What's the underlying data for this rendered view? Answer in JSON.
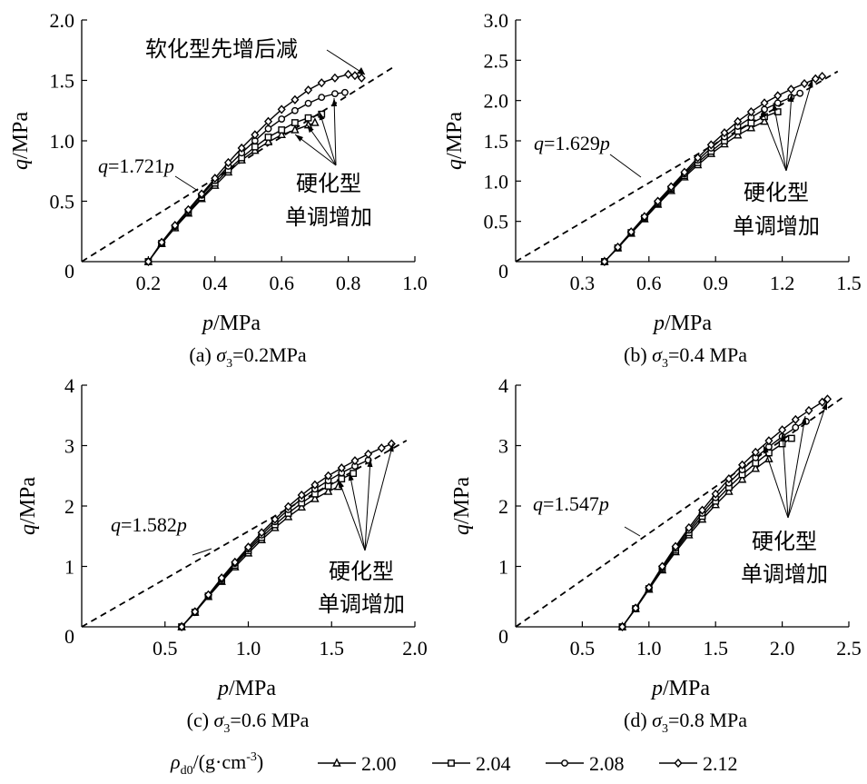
{
  "figure": {
    "legend": {
      "title_symbol": "ρ",
      "title_sub": "d0",
      "title_unit": "/(g·cm",
      "title_exp": "-3",
      "title_close": ")",
      "entries": [
        {
          "label": "2.00",
          "marker": "triangle"
        },
        {
          "label": "2.04",
          "marker": "square"
        },
        {
          "label": "2.08",
          "marker": "circle"
        },
        {
          "label": "2.12",
          "marker": "diamond"
        }
      ]
    }
  },
  "chart_data": [
    {
      "type": "line",
      "caption_prefix": "(a) ",
      "caption_sigma": "σ",
      "caption_sub": "3",
      "caption_value": "=0.2MPa",
      "xlabel_var": "p",
      "xlabel_unit": "/MPa",
      "ylabel_var": "q",
      "ylabel_unit": "/MPa",
      "xlim": [
        0,
        1.0
      ],
      "ylim": [
        0,
        2.0
      ],
      "xticks": [
        0.2,
        0.4,
        0.6,
        0.8,
        1.0
      ],
      "xtick_labels": [
        "0.2",
        "0.4",
        "0.6",
        "0.8",
        "1.0"
      ],
      "yticks": [
        0.5,
        1.0,
        1.5,
        2.0
      ],
      "ytick_labels": [
        "0.5",
        "1.0",
        "1.5",
        "2.0"
      ],
      "origin_label": "0",
      "critical_line": {
        "slope": 1.721,
        "x_end": 0.94,
        "label_var": "q",
        "label_mid": "=1.721",
        "label_var2": "p"
      },
      "annotations": [
        {
          "text": "软化型先增后减",
          "position": "top"
        },
        {
          "line1": "硬化型",
          "line2": "单调增加",
          "position": "right"
        }
      ],
      "series": [
        {
          "name": "2.00",
          "marker": "triangle",
          "x": [
            0.2,
            0.24,
            0.28,
            0.32,
            0.36,
            0.4,
            0.44,
            0.48,
            0.52,
            0.56,
            0.6,
            0.64,
            0.68,
            0.7
          ],
          "y": [
            0,
            0.15,
            0.28,
            0.4,
            0.52,
            0.63,
            0.74,
            0.84,
            0.92,
            0.99,
            1.05,
            1.09,
            1.13,
            1.15
          ]
        },
        {
          "name": "2.04",
          "marker": "square",
          "x": [
            0.2,
            0.24,
            0.28,
            0.32,
            0.36,
            0.4,
            0.44,
            0.48,
            0.52,
            0.56,
            0.6,
            0.64,
            0.68,
            0.72
          ],
          "y": [
            0,
            0.15,
            0.28,
            0.41,
            0.53,
            0.65,
            0.76,
            0.86,
            0.95,
            1.03,
            1.09,
            1.15,
            1.19,
            1.22
          ]
        },
        {
          "name": "2.08",
          "marker": "circle",
          "x": [
            0.2,
            0.24,
            0.28,
            0.32,
            0.36,
            0.4,
            0.44,
            0.48,
            0.52,
            0.56,
            0.6,
            0.64,
            0.68,
            0.72,
            0.76,
            0.79
          ],
          "y": [
            0,
            0.15,
            0.29,
            0.42,
            0.55,
            0.67,
            0.79,
            0.9,
            1.0,
            1.1,
            1.18,
            1.25,
            1.31,
            1.36,
            1.39,
            1.4
          ]
        },
        {
          "name": "2.12",
          "marker": "diamond",
          "x": [
            0.2,
            0.24,
            0.28,
            0.32,
            0.36,
            0.4,
            0.44,
            0.48,
            0.52,
            0.56,
            0.6,
            0.64,
            0.68,
            0.72,
            0.76,
            0.8,
            0.82,
            0.84
          ],
          "y": [
            0,
            0.16,
            0.3,
            0.43,
            0.56,
            0.69,
            0.82,
            0.94,
            1.05,
            1.16,
            1.26,
            1.34,
            1.42,
            1.48,
            1.52,
            1.55,
            1.54,
            1.52
          ]
        }
      ]
    },
    {
      "type": "line",
      "caption_prefix": "(b) ",
      "caption_sigma": "σ",
      "caption_sub": "3",
      "caption_value": "=0.4 MPa",
      "xlabel_var": "p",
      "xlabel_unit": "/MPa",
      "ylabel_var": "q",
      "ylabel_unit": "/MPa",
      "xlim": [
        0,
        1.5
      ],
      "ylim": [
        0,
        3.0
      ],
      "xticks": [
        0.3,
        0.6,
        0.9,
        1.2,
        1.5
      ],
      "xtick_labels": [
        "0.3",
        "0.6",
        "0.9",
        "1.2",
        "1.5"
      ],
      "yticks": [
        0.5,
        1.0,
        1.5,
        2.0,
        2.5,
        3.0
      ],
      "ytick_labels": [
        "0.5",
        "1.0",
        "1.5",
        "2.0",
        "2.5",
        "3.0"
      ],
      "origin_label": "0",
      "critical_line": {
        "slope": 1.629,
        "x_end": 1.45,
        "label_var": "q",
        "label_mid": "=1.629",
        "label_var2": "p"
      },
      "annotations": [
        {
          "line1": "硬化型",
          "line2": "单调增加",
          "position": "right"
        }
      ],
      "series": [
        {
          "name": "2.00",
          "marker": "triangle",
          "x": [
            0.4,
            0.46,
            0.52,
            0.58,
            0.64,
            0.7,
            0.76,
            0.82,
            0.88,
            0.94,
            1.0,
            1.06,
            1.12
          ],
          "y": [
            0,
            0.17,
            0.35,
            0.53,
            0.71,
            0.88,
            1.05,
            1.2,
            1.34,
            1.46,
            1.57,
            1.66,
            1.74
          ]
        },
        {
          "name": "2.04",
          "marker": "square",
          "x": [
            0.4,
            0.46,
            0.52,
            0.58,
            0.64,
            0.7,
            0.76,
            0.82,
            0.88,
            0.94,
            1.0,
            1.06,
            1.12,
            1.18
          ],
          "y": [
            0,
            0.17,
            0.36,
            0.54,
            0.72,
            0.9,
            1.07,
            1.23,
            1.37,
            1.5,
            1.62,
            1.72,
            1.8,
            1.86
          ]
        },
        {
          "name": "2.08",
          "marker": "circle",
          "x": [
            0.4,
            0.46,
            0.52,
            0.58,
            0.64,
            0.7,
            0.76,
            0.82,
            0.88,
            0.94,
            1.0,
            1.06,
            1.12,
            1.18,
            1.24,
            1.28
          ],
          "y": [
            0,
            0.17,
            0.36,
            0.55,
            0.73,
            0.91,
            1.09,
            1.26,
            1.41,
            1.55,
            1.68,
            1.79,
            1.89,
            1.97,
            2.04,
            2.09
          ]
        },
        {
          "name": "2.12",
          "marker": "diamond",
          "x": [
            0.4,
            0.46,
            0.52,
            0.58,
            0.64,
            0.7,
            0.76,
            0.82,
            0.88,
            0.94,
            1.0,
            1.06,
            1.12,
            1.18,
            1.24,
            1.3,
            1.35,
            1.38
          ],
          "y": [
            0,
            0.18,
            0.37,
            0.56,
            0.75,
            0.93,
            1.11,
            1.29,
            1.45,
            1.6,
            1.74,
            1.86,
            1.97,
            2.06,
            2.14,
            2.21,
            2.27,
            2.3
          ]
        }
      ]
    },
    {
      "type": "line",
      "caption_prefix": "(c) ",
      "caption_sigma": "σ",
      "caption_sub": "3",
      "caption_value": "=0.6 MPa",
      "xlabel_var": "p",
      "xlabel_unit": "/MPa",
      "ylabel_var": "q",
      "ylabel_unit": "/MPa",
      "xlim": [
        0,
        2.0
      ],
      "ylim": [
        0,
        4.0
      ],
      "xticks": [
        0.5,
        1.0,
        1.5,
        2.0
      ],
      "xtick_labels": [
        "0.5",
        "1.0",
        "1.5",
        "2.0"
      ],
      "yticks": [
        1,
        2,
        3,
        4
      ],
      "ytick_labels": [
        "1",
        "2",
        "3",
        "4"
      ],
      "origin_label": "0",
      "critical_line": {
        "slope": 1.582,
        "x_end": 1.95,
        "label_var": "q",
        "label_mid": "=1.582",
        "label_var2": "p"
      },
      "annotations": [
        {
          "line1": "硬化型",
          "line2": "单调增加",
          "position": "right"
        }
      ],
      "series": [
        {
          "name": "2.00",
          "marker": "triangle",
          "x": [
            0.6,
            0.68,
            0.76,
            0.84,
            0.92,
            1.0,
            1.08,
            1.16,
            1.24,
            1.32,
            1.4,
            1.48,
            1.54
          ],
          "y": [
            0,
            0.24,
            0.5,
            0.75,
            0.99,
            1.22,
            1.44,
            1.64,
            1.82,
            1.98,
            2.12,
            2.24,
            2.32
          ]
        },
        {
          "name": "2.04",
          "marker": "square",
          "x": [
            0.6,
            0.68,
            0.76,
            0.84,
            0.92,
            1.0,
            1.08,
            1.16,
            1.24,
            1.32,
            1.4,
            1.48,
            1.56,
            1.63
          ],
          "y": [
            0,
            0.24,
            0.51,
            0.77,
            1.02,
            1.26,
            1.48,
            1.69,
            1.88,
            2.05,
            2.2,
            2.33,
            2.45,
            2.54
          ]
        },
        {
          "name": "2.08",
          "marker": "circle",
          "x": [
            0.6,
            0.68,
            0.76,
            0.84,
            0.92,
            1.0,
            1.08,
            1.16,
            1.24,
            1.32,
            1.4,
            1.48,
            1.56,
            1.64,
            1.72
          ],
          "y": [
            0,
            0.25,
            0.52,
            0.79,
            1.05,
            1.29,
            1.52,
            1.74,
            1.94,
            2.12,
            2.28,
            2.42,
            2.55,
            2.66,
            2.76
          ]
        },
        {
          "name": "2.12",
          "marker": "diamond",
          "x": [
            0.6,
            0.68,
            0.76,
            0.84,
            0.92,
            1.0,
            1.08,
            1.16,
            1.24,
            1.32,
            1.4,
            1.48,
            1.56,
            1.64,
            1.72,
            1.8,
            1.86
          ],
          "y": [
            0,
            0.25,
            0.53,
            0.81,
            1.07,
            1.32,
            1.56,
            1.78,
            1.99,
            2.18,
            2.35,
            2.5,
            2.63,
            2.75,
            2.86,
            2.96,
            3.03
          ]
        }
      ]
    },
    {
      "type": "line",
      "caption_prefix": "(d) ",
      "caption_sigma": "σ",
      "caption_sub": "3",
      "caption_value": "=0.8 MPa",
      "xlabel_var": "p",
      "xlabel_unit": "/MPa",
      "ylabel_var": "q",
      "ylabel_unit": "/MPa",
      "xlim": [
        0,
        2.5
      ],
      "ylim": [
        0,
        4.0
      ],
      "xticks": [
        0.5,
        1.0,
        1.5,
        2.0,
        2.5
      ],
      "xtick_labels": [
        "0.5",
        "1.0",
        "1.5",
        "2.0",
        "2.5"
      ],
      "yticks": [
        1,
        2,
        3,
        4
      ],
      "ytick_labels": [
        "1",
        "2",
        "3",
        "4"
      ],
      "origin_label": "0",
      "critical_line": {
        "slope": 1.547,
        "x_end": 2.45,
        "label_var": "q",
        "label_mid": "=1.547",
        "label_var2": "p"
      },
      "annotations": [
        {
          "line1": "硬化型",
          "line2": "单调增加",
          "position": "right"
        }
      ],
      "series": [
        {
          "name": "2.00",
          "marker": "triangle",
          "x": [
            0.8,
            0.9,
            1.0,
            1.1,
            1.2,
            1.3,
            1.4,
            1.5,
            1.6,
            1.7,
            1.8,
            1.9
          ],
          "y": [
            0,
            0.3,
            0.62,
            0.94,
            1.24,
            1.52,
            1.78,
            2.02,
            2.24,
            2.44,
            2.62,
            2.78
          ]
        },
        {
          "name": "2.04",
          "marker": "square",
          "x": [
            0.8,
            0.9,
            1.0,
            1.1,
            1.2,
            1.3,
            1.4,
            1.5,
            1.6,
            1.7,
            1.8,
            1.9,
            2.0,
            2.07
          ],
          "y": [
            0,
            0.3,
            0.63,
            0.96,
            1.27,
            1.56,
            1.83,
            2.08,
            2.31,
            2.52,
            2.71,
            2.88,
            3.03,
            3.12
          ]
        },
        {
          "name": "2.08",
          "marker": "circle",
          "x": [
            0.8,
            0.9,
            1.0,
            1.1,
            1.2,
            1.3,
            1.4,
            1.5,
            1.6,
            1.7,
            1.8,
            1.9,
            2.0,
            2.1,
            2.18
          ],
          "y": [
            0,
            0.31,
            0.64,
            0.98,
            1.3,
            1.6,
            1.88,
            2.14,
            2.38,
            2.6,
            2.8,
            2.98,
            3.15,
            3.3,
            3.4
          ]
        },
        {
          "name": "2.12",
          "marker": "diamond",
          "x": [
            0.8,
            0.9,
            1.0,
            1.1,
            1.2,
            1.3,
            1.4,
            1.5,
            1.6,
            1.7,
            1.8,
            1.9,
            2.0,
            2.1,
            2.2,
            2.3,
            2.34
          ],
          "y": [
            0,
            0.31,
            0.65,
            1.0,
            1.33,
            1.64,
            1.93,
            2.2,
            2.45,
            2.68,
            2.89,
            3.08,
            3.26,
            3.43,
            3.58,
            3.72,
            3.77
          ]
        }
      ]
    }
  ]
}
